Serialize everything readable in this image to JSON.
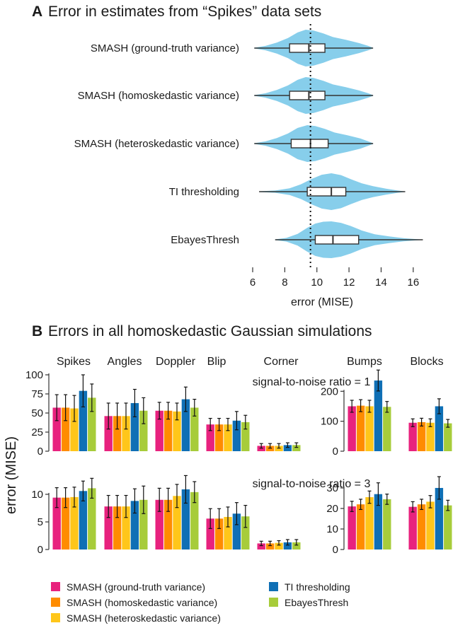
{
  "colors": {
    "violin": "#87CEEB",
    "ground_truth": "#E8227E",
    "homoskedastic": "#FF8C00",
    "heteroskedastic": "#FFC61A",
    "ti": "#0F6FB5",
    "ebayes": "#A7CC3A"
  },
  "chart_data": [
    {
      "type": "violin",
      "panel_letter": "A",
      "title": "Error in estimates from “Spikes” data sets",
      "xlabel": "error (MISE)",
      "xlim": [
        6,
        16.8
      ],
      "xticks": [
        6,
        8,
        10,
        12,
        14,
        16
      ],
      "reference_line": 9.6,
      "methods": [
        {
          "name": "SMASH (ground-truth variance)",
          "min": 6.1,
          "q1": 8.3,
          "median": 9.5,
          "q3": 10.5,
          "max": 13.5,
          "density": [
            [
              6.1,
              0.02
            ],
            [
              6.8,
              0.12
            ],
            [
              7.5,
              0.3
            ],
            [
              8.2,
              0.55
            ],
            [
              8.8,
              0.85
            ],
            [
              9.3,
              1.0
            ],
            [
              9.8,
              0.95
            ],
            [
              10.4,
              0.8
            ],
            [
              11.0,
              0.6
            ],
            [
              11.8,
              0.45
            ],
            [
              12.6,
              0.28
            ],
            [
              13.2,
              0.12
            ],
            [
              13.5,
              0.02
            ]
          ]
        },
        {
          "name": "SMASH (homoskedastic variance)",
          "min": 6.1,
          "q1": 8.3,
          "median": 9.5,
          "q3": 10.5,
          "max": 13.5,
          "density": [
            [
              6.1,
              0.02
            ],
            [
              6.8,
              0.12
            ],
            [
              7.5,
              0.3
            ],
            [
              8.2,
              0.55
            ],
            [
              8.8,
              0.85
            ],
            [
              9.3,
              1.0
            ],
            [
              9.8,
              0.95
            ],
            [
              10.4,
              0.8
            ],
            [
              11.0,
              0.6
            ],
            [
              11.8,
              0.45
            ],
            [
              12.6,
              0.28
            ],
            [
              13.2,
              0.12
            ],
            [
              13.5,
              0.02
            ]
          ]
        },
        {
          "name": "SMASH (heteroskedastic variance)",
          "min": 6.1,
          "q1": 8.4,
          "median": 9.6,
          "q3": 10.7,
          "max": 13.5,
          "density": [
            [
              6.1,
              0.02
            ],
            [
              6.8,
              0.12
            ],
            [
              7.5,
              0.3
            ],
            [
              8.2,
              0.55
            ],
            [
              8.8,
              0.85
            ],
            [
              9.4,
              1.0
            ],
            [
              9.9,
              0.95
            ],
            [
              10.5,
              0.8
            ],
            [
              11.1,
              0.6
            ],
            [
              11.9,
              0.45
            ],
            [
              12.7,
              0.28
            ],
            [
              13.2,
              0.12
            ],
            [
              13.5,
              0.02
            ]
          ]
        },
        {
          "name": "TI thresholding",
          "min": 6.4,
          "q1": 9.4,
          "median": 10.9,
          "q3": 11.8,
          "max": 15.5,
          "density": [
            [
              6.4,
              0.02
            ],
            [
              7.4,
              0.06
            ],
            [
              8.3,
              0.18
            ],
            [
              9.0,
              0.4
            ],
            [
              9.7,
              0.7
            ],
            [
              10.3,
              0.92
            ],
            [
              10.9,
              1.0
            ],
            [
              11.5,
              0.9
            ],
            [
              12.1,
              0.68
            ],
            [
              12.8,
              0.45
            ],
            [
              13.5,
              0.3
            ],
            [
              14.3,
              0.16
            ],
            [
              15.0,
              0.07
            ],
            [
              15.5,
              0.01
            ]
          ]
        },
        {
          "name": "EbayesThresh",
          "min": 7.4,
          "q1": 9.9,
          "median": 11.0,
          "q3": 12.6,
          "max": 16.6,
          "density": [
            [
              7.4,
              0.02
            ],
            [
              8.1,
              0.1
            ],
            [
              8.8,
              0.32
            ],
            [
              9.4,
              0.65
            ],
            [
              9.9,
              0.88
            ],
            [
              10.4,
              0.98
            ],
            [
              10.9,
              1.0
            ],
            [
              11.5,
              0.92
            ],
            [
              12.1,
              0.75
            ],
            [
              12.8,
              0.5
            ],
            [
              13.6,
              0.3
            ],
            [
              14.5,
              0.18
            ],
            [
              15.4,
              0.09
            ],
            [
              16.1,
              0.04
            ],
            [
              16.6,
              0.01
            ]
          ]
        }
      ]
    },
    {
      "type": "bar",
      "panel_letter": "B",
      "title": "Errors in all homoskedastic Gaussian simulations",
      "ylabel": "error (MISE)",
      "categories": [
        "Spikes",
        "Angles",
        "Doppler",
        "Blip",
        "Corner",
        "Bumps",
        "Blocks"
      ],
      "series_names": [
        "SMASH (ground-truth variance)",
        "SMASH (homoskedastic variance)",
        "SMASH (heteroskedastic variance)",
        "TI thresholding",
        "EbayesThresh"
      ],
      "rows": [
        {
          "label": "signal-to-noise ratio = 1",
          "groups": [
            {
              "axis": "left",
              "ylim": [
                0,
                100
              ],
              "yticks": [
                0,
                25,
                50,
                75,
                100
              ],
              "datasets": [
                {
                  "values": [
                    57,
                    57,
                    56,
                    79,
                    70
                  ],
                  "err": [
                    17,
                    17,
                    17,
                    21,
                    18
                  ]
                },
                {
                  "values": [
                    46,
                    46,
                    46,
                    63,
                    53
                  ],
                  "err": [
                    17,
                    17,
                    17,
                    18,
                    17
                  ]
                },
                {
                  "values": [
                    53,
                    53,
                    52,
                    68,
                    57
                  ],
                  "err": [
                    11,
                    11,
                    11,
                    16,
                    11
                  ]
                },
                {
                  "values": [
                    35,
                    35,
                    35,
                    40,
                    38
                  ],
                  "err": [
                    8,
                    8,
                    8,
                    12,
                    9
                  ]
                },
                {
                  "values": [
                    7,
                    7,
                    7,
                    8,
                    8
                  ],
                  "err": [
                    3,
                    3,
                    3,
                    3,
                    3
                  ]
                }
              ]
            },
            {
              "axis": "right",
              "ylim": [
                0,
                255
              ],
              "yticks": [
                0,
                100,
                200
              ],
              "datasets": [
                {
                  "values": [
                    150,
                    152,
                    150,
                    236,
                    148
                  ],
                  "err": [
                    20,
                    20,
                    20,
                    35,
                    18
                  ]
                },
                {
                  "values": [
                    95,
                    97,
                    95,
                    150,
                    93
                  ],
                  "err": [
                    13,
                    13,
                    13,
                    25,
                    13
                  ]
                }
              ]
            }
          ]
        },
        {
          "label": "signal-to-noise ratio = 3",
          "groups": [
            {
              "axis": "left",
              "ylim": [
                0,
                13.2
              ],
              "yticks": [
                0,
                5,
                10
              ],
              "datasets": [
                {
                  "values": [
                    9.4,
                    9.4,
                    9.5,
                    10.6,
                    11.1
                  ],
                  "err": [
                    1.8,
                    1.8,
                    1.8,
                    1.8,
                    1.8
                  ]
                },
                {
                  "values": [
                    7.8,
                    7.8,
                    7.8,
                    8.8,
                    9.0
                  ],
                  "err": [
                    2.0,
                    2.0,
                    2.0,
                    2.2,
                    2.5
                  ]
                },
                {
                  "values": [
                    9.0,
                    9.0,
                    9.7,
                    10.9,
                    10.4
                  ],
                  "err": [
                    2.1,
                    2.1,
                    2.1,
                    2.5,
                    1.9
                  ]
                },
                {
                  "values": [
                    5.6,
                    5.6,
                    5.9,
                    6.5,
                    6.0
                  ],
                  "err": [
                    1.8,
                    1.8,
                    1.8,
                    2.0,
                    2.0
                  ]
                },
                {
                  "values": [
                    1.1,
                    1.1,
                    1.2,
                    1.3,
                    1.3
                  ],
                  "err": [
                    0.4,
                    0.4,
                    0.4,
                    0.5,
                    0.5
                  ]
                }
              ]
            },
            {
              "axis": "right",
              "ylim": [
                0,
                35.5
              ],
              "yticks": [
                0,
                10,
                20,
                30
              ],
              "datasets": [
                {
                  "values": [
                    21,
                    22,
                    25.5,
                    27,
                    24.5
                  ],
                  "err": [
                    2.5,
                    2.5,
                    3,
                    5.5,
                    2.5
                  ]
                },
                {
                  "values": [
                    20.8,
                    22,
                    23.3,
                    30,
                    21.5
                  ],
                  "err": [
                    2.5,
                    2.5,
                    3,
                    5.5,
                    2.5
                  ]
                }
              ]
            }
          ]
        }
      ]
    }
  ]
}
